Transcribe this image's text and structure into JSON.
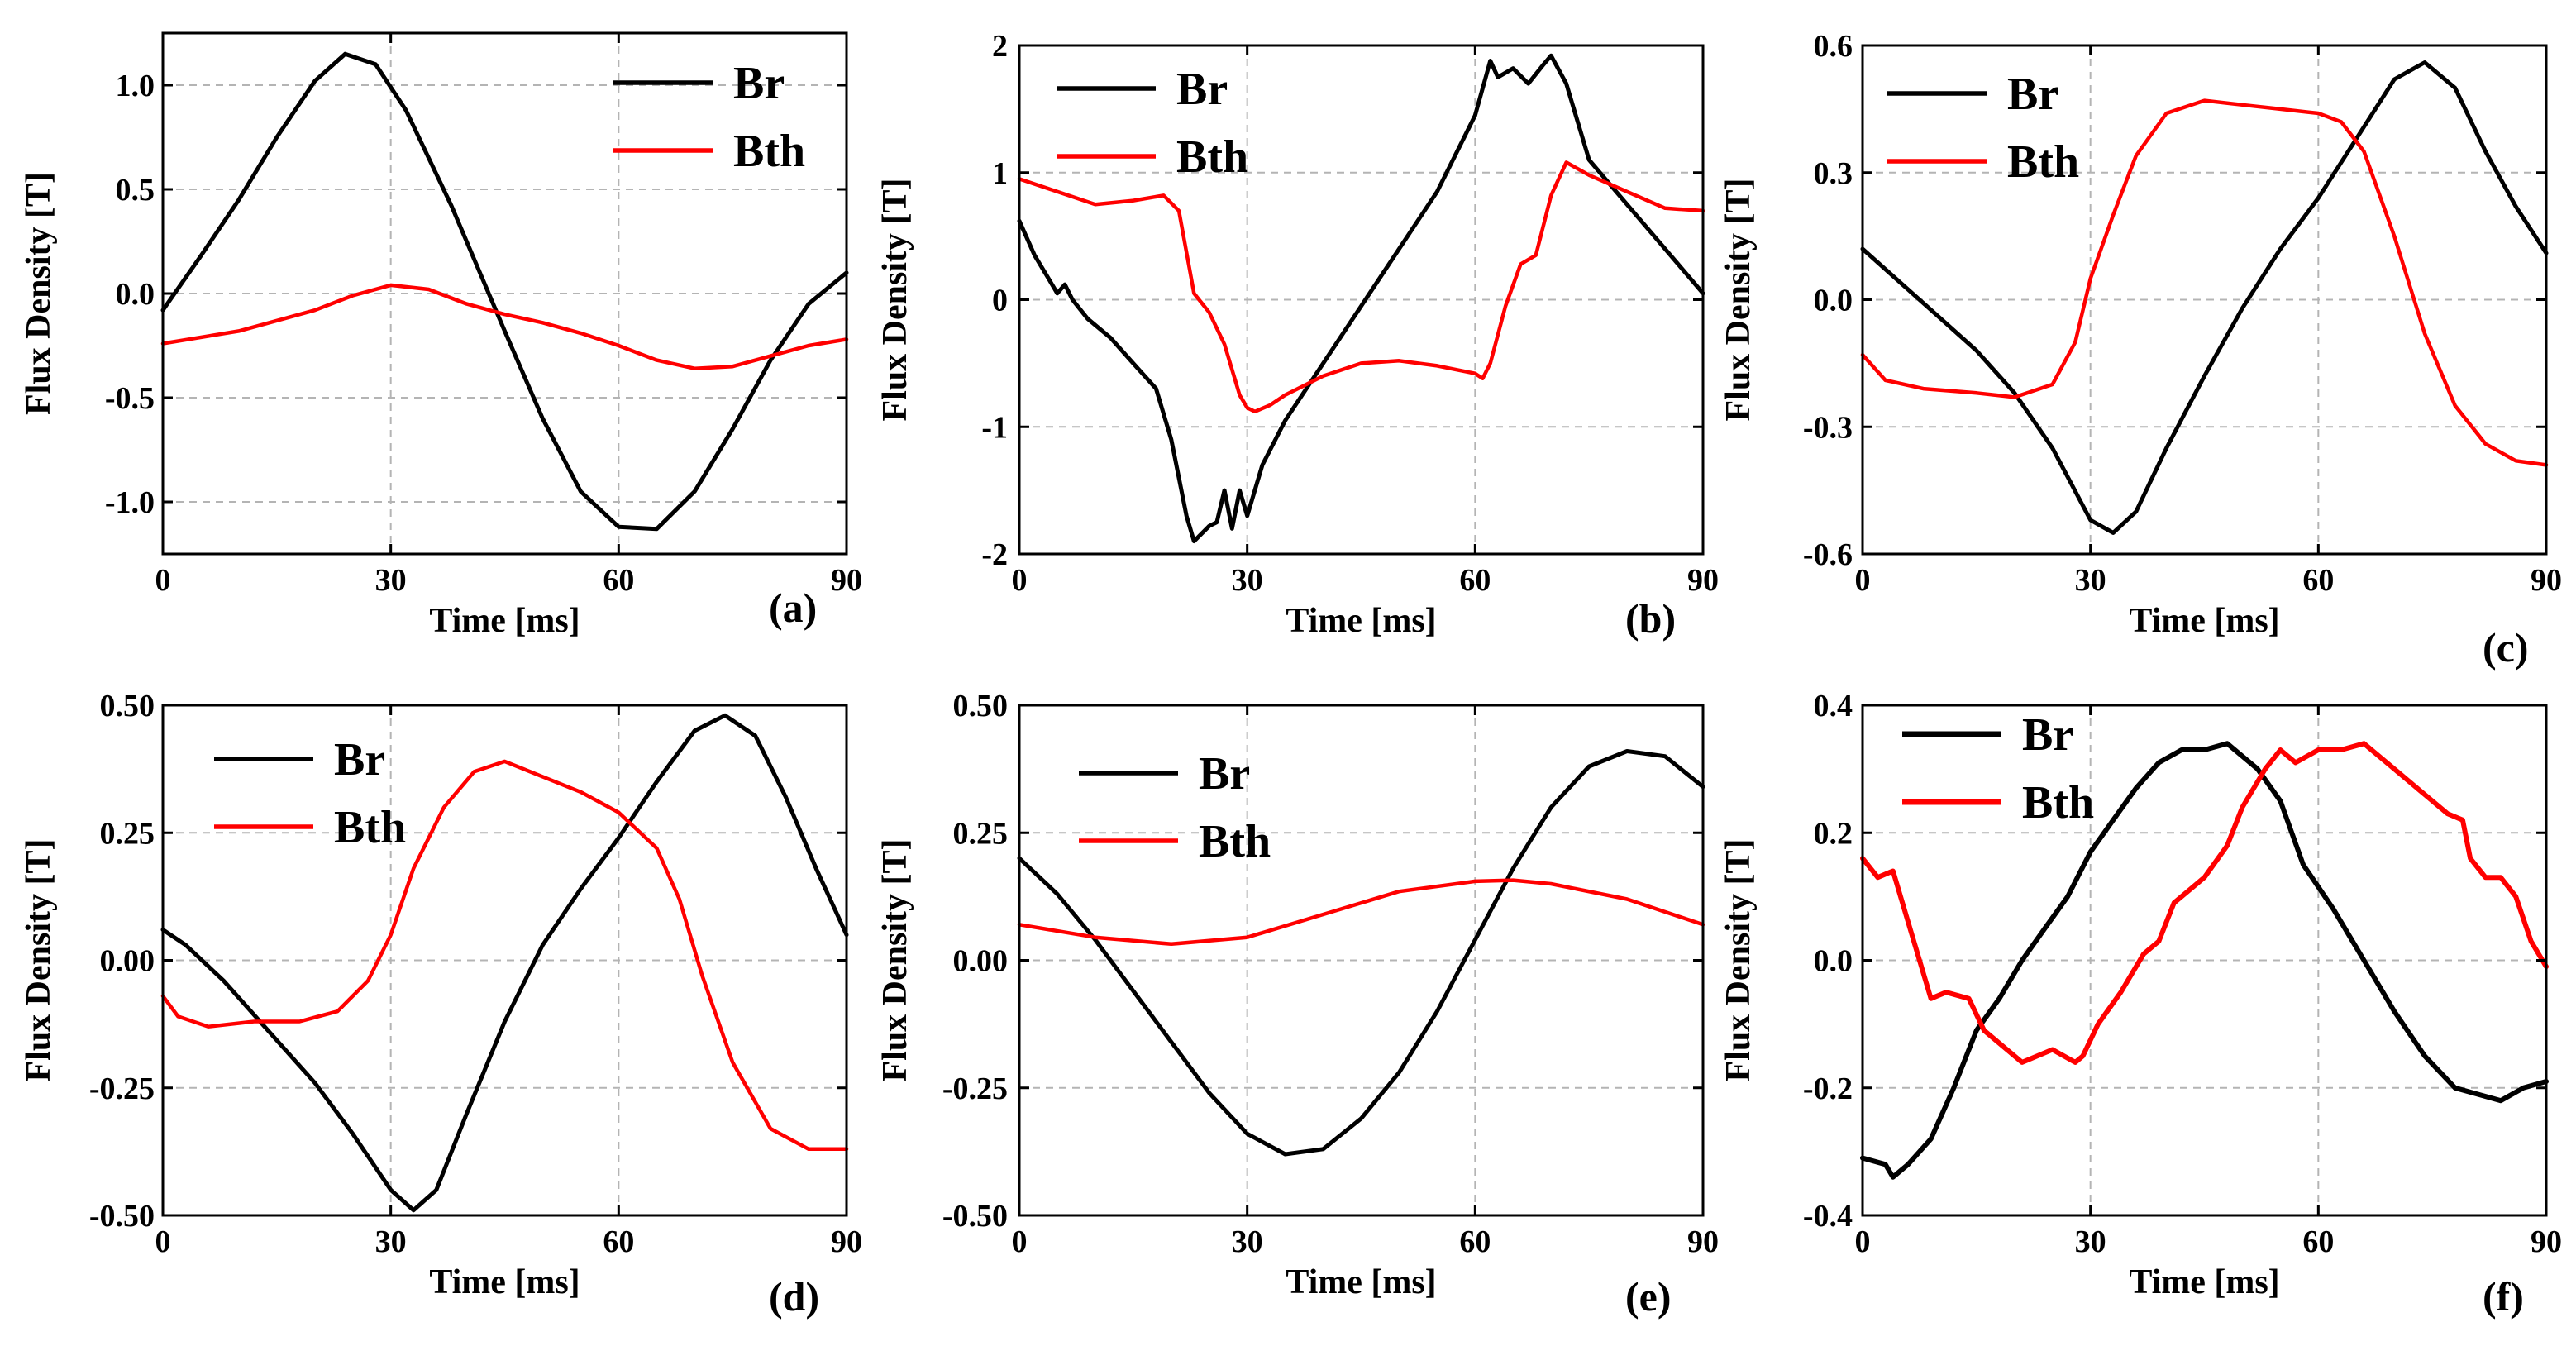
{
  "chart_data": [
    {
      "type": "line",
      "panel_label": "(a)",
      "xlabel": "Time [ms]",
      "ylabel": "Flux Density [T]",
      "xlim": [
        0,
        90
      ],
      "ylim": [
        -1.25,
        1.25
      ],
      "xticks": [
        0,
        30,
        60,
        90
      ],
      "xtick_labels": [
        "0",
        "30",
        "60",
        "90"
      ],
      "yticks": [
        -1.0,
        -0.5,
        0.0,
        0.5,
        1.0
      ],
      "ytick_labels": [
        "-1.0",
        "-0.5",
        "0.0",
        "0.5",
        "1.0"
      ],
      "grid": true,
      "legend": "top-right",
      "series": [
        {
          "name": "Br",
          "color": "#000000",
          "x": [
            0,
            5,
            10,
            15,
            20,
            24,
            28,
            32,
            38,
            45,
            50,
            55,
            60,
            65,
            70,
            75,
            80,
            85,
            90
          ],
          "y": [
            -0.08,
            0.18,
            0.45,
            0.75,
            1.02,
            1.15,
            1.1,
            0.88,
            0.42,
            -0.18,
            -0.6,
            -0.95,
            -1.12,
            -1.13,
            -0.95,
            -0.65,
            -0.32,
            -0.05,
            0.1
          ]
        },
        {
          "name": "Bth",
          "color": "#ff0000",
          "x": [
            0,
            10,
            20,
            25,
            30,
            35,
            40,
            45,
            50,
            55,
            60,
            65,
            70,
            75,
            80,
            85,
            90
          ],
          "y": [
            -0.24,
            -0.18,
            -0.08,
            -0.01,
            0.04,
            0.02,
            -0.05,
            -0.1,
            -0.14,
            -0.19,
            -0.25,
            -0.32,
            -0.36,
            -0.35,
            -0.3,
            -0.25,
            -0.22
          ]
        }
      ]
    },
    {
      "type": "line",
      "panel_label": "(b)",
      "xlabel": "Time [ms]",
      "ylabel": "Flux Density [T]",
      "xlim": [
        0,
        90
      ],
      "ylim": [
        -2,
        2
      ],
      "xticks": [
        0,
        30,
        60,
        90
      ],
      "xtick_labels": [
        "0",
        "30",
        "60",
        "90"
      ],
      "yticks": [
        -2,
        -1,
        0,
        1,
        2
      ],
      "ytick_labels": [
        "-2",
        "-1",
        "0",
        "1",
        "2"
      ],
      "grid": true,
      "legend": "top-left",
      "series": [
        {
          "name": "Br",
          "color": "#000000",
          "x": [
            0,
            2,
            4,
            5,
            6,
            7,
            9,
            12,
            15,
            18,
            20,
            22,
            23,
            25,
            26,
            27,
            28,
            29,
            30,
            32,
            35,
            40,
            45,
            50,
            55,
            60,
            62,
            63,
            65,
            67,
            69,
            70,
            72,
            75,
            80,
            85,
            90
          ],
          "y": [
            0.62,
            0.35,
            0.15,
            0.05,
            0.12,
            0.0,
            -0.15,
            -0.3,
            -0.5,
            -0.7,
            -1.1,
            -1.7,
            -1.9,
            -1.78,
            -1.75,
            -1.5,
            -1.8,
            -1.5,
            -1.7,
            -1.3,
            -0.95,
            -0.5,
            -0.05,
            0.4,
            0.85,
            1.45,
            1.88,
            1.75,
            1.82,
            1.7,
            1.85,
            1.92,
            1.7,
            1.1,
            0.75,
            0.4,
            0.05
          ]
        },
        {
          "name": "Bth",
          "color": "#ff0000",
          "x": [
            0,
            5,
            10,
            15,
            19,
            21,
            23,
            25,
            27,
            29,
            30,
            31,
            33,
            35,
            40,
            45,
            50,
            55,
            60,
            61,
            62,
            64,
            66,
            68,
            70,
            72,
            75,
            80,
            85,
            90
          ],
          "y": [
            0.95,
            0.85,
            0.75,
            0.78,
            0.82,
            0.7,
            0.05,
            -0.1,
            -0.35,
            -0.75,
            -0.85,
            -0.88,
            -0.83,
            -0.75,
            -0.6,
            -0.5,
            -0.48,
            -0.52,
            -0.58,
            -0.62,
            -0.5,
            -0.05,
            0.28,
            0.35,
            0.82,
            1.08,
            0.98,
            0.85,
            0.72,
            0.7
          ]
        }
      ]
    },
    {
      "type": "line",
      "panel_label": "(c)",
      "xlabel": "Time [ms]",
      "ylabel": "Flux Density [T]",
      "xlim": [
        0,
        90
      ],
      "ylim": [
        -0.6,
        0.6
      ],
      "xticks": [
        0,
        30,
        60,
        90
      ],
      "xtick_labels": [
        "0",
        "30",
        "60",
        "90"
      ],
      "yticks": [
        -0.6,
        -0.3,
        0.0,
        0.3,
        0.6
      ],
      "ytick_labels": [
        "-0.6",
        "-0.3",
        "0.0",
        "0.3",
        "0.6"
      ],
      "grid": true,
      "legend": "top-left",
      "series": [
        {
          "name": "Br",
          "color": "#000000",
          "x": [
            0,
            5,
            10,
            15,
            20,
            25,
            30,
            33,
            36,
            40,
            45,
            50,
            55,
            60,
            65,
            70,
            74,
            78,
            82,
            86,
            90
          ],
          "y": [
            0.12,
            0.04,
            -0.04,
            -0.12,
            -0.22,
            -0.35,
            -0.52,
            -0.55,
            -0.5,
            -0.35,
            -0.18,
            -0.02,
            0.12,
            0.24,
            0.38,
            0.52,
            0.56,
            0.5,
            0.35,
            0.22,
            0.11
          ]
        },
        {
          "name": "Bth",
          "color": "#ff0000",
          "x": [
            0,
            3,
            8,
            15,
            20,
            25,
            28,
            30,
            33,
            36,
            40,
            45,
            50,
            55,
            60,
            63,
            66,
            70,
            74,
            78,
            82,
            86,
            90
          ],
          "y": [
            -0.13,
            -0.19,
            -0.21,
            -0.22,
            -0.23,
            -0.2,
            -0.1,
            0.05,
            0.2,
            0.34,
            0.44,
            0.47,
            0.46,
            0.45,
            0.44,
            0.42,
            0.35,
            0.15,
            -0.08,
            -0.25,
            -0.34,
            -0.38,
            -0.39
          ]
        }
      ]
    },
    {
      "type": "line",
      "panel_label": "(d)",
      "xlabel": "Time [ms]",
      "ylabel": "Flux Density [T]",
      "xlim": [
        0,
        90
      ],
      "ylim": [
        -0.5,
        0.5
      ],
      "xticks": [
        0,
        30,
        60,
        90
      ],
      "xtick_labels": [
        "0",
        "30",
        "60",
        "90"
      ],
      "yticks": [
        -0.5,
        -0.25,
        0.0,
        0.25,
        0.5
      ],
      "ytick_labels": [
        "-0.50",
        "-0.25",
        "0.00",
        "0.25",
        "0.50"
      ],
      "grid": true,
      "legend": "top-left",
      "series": [
        {
          "name": "Br",
          "color": "#000000",
          "x": [
            0,
            3,
            8,
            14,
            20,
            25,
            30,
            33,
            36,
            40,
            45,
            50,
            55,
            60,
            65,
            70,
            74,
            78,
            82,
            86,
            90
          ],
          "y": [
            0.06,
            0.03,
            -0.04,
            -0.14,
            -0.24,
            -0.34,
            -0.45,
            -0.49,
            -0.45,
            -0.3,
            -0.12,
            0.03,
            0.14,
            0.24,
            0.35,
            0.45,
            0.48,
            0.44,
            0.32,
            0.18,
            0.05
          ]
        },
        {
          "name": "Bth",
          "color": "#ff0000",
          "x": [
            0,
            2,
            6,
            12,
            18,
            23,
            27,
            30,
            33,
            37,
            41,
            45,
            50,
            55,
            60,
            65,
            68,
            71,
            75,
            80,
            85,
            90
          ],
          "y": [
            -0.07,
            -0.11,
            -0.13,
            -0.12,
            -0.12,
            -0.1,
            -0.04,
            0.05,
            0.18,
            0.3,
            0.37,
            0.39,
            0.36,
            0.33,
            0.29,
            0.22,
            0.12,
            -0.03,
            -0.2,
            -0.33,
            -0.37,
            -0.37
          ]
        }
      ]
    },
    {
      "type": "line",
      "panel_label": "(e)",
      "xlabel": "Time [ms]",
      "ylabel": "Flux Density [T]",
      "xlim": [
        0,
        90
      ],
      "ylim": [
        -0.5,
        0.5
      ],
      "xticks": [
        0,
        30,
        60,
        90
      ],
      "xtick_labels": [
        "0",
        "30",
        "60",
        "90"
      ],
      "yticks": [
        -0.5,
        -0.25,
        0.0,
        0.25,
        0.5
      ],
      "ytick_labels": [
        "-0.50",
        "-0.25",
        "0.00",
        "0.25",
        "0.50"
      ],
      "grid": true,
      "legend": "top-left",
      "series": [
        {
          "name": "Br",
          "color": "#000000",
          "x": [
            0,
            5,
            10,
            15,
            20,
            25,
            30,
            35,
            40,
            45,
            50,
            55,
            60,
            65,
            70,
            75,
            80,
            85,
            90
          ],
          "y": [
            0.2,
            0.13,
            0.04,
            -0.06,
            -0.16,
            -0.26,
            -0.34,
            -0.38,
            -0.37,
            -0.31,
            -0.22,
            -0.1,
            0.04,
            0.18,
            0.3,
            0.38,
            0.41,
            0.4,
            0.34
          ]
        },
        {
          "name": "Bth",
          "color": "#ff0000",
          "x": [
            0,
            10,
            20,
            30,
            40,
            50,
            60,
            65,
            70,
            80,
            90
          ],
          "y": [
            0.07,
            0.045,
            0.032,
            0.045,
            0.09,
            0.135,
            0.155,
            0.157,
            0.15,
            0.12,
            0.07
          ]
        }
      ]
    },
    {
      "type": "line",
      "panel_label": "(f)",
      "xlabel": "Time [ms]",
      "ylabel": "Flux Density [T]",
      "xlim": [
        0,
        90
      ],
      "ylim": [
        -0.4,
        0.4
      ],
      "xticks": [
        0,
        30,
        60,
        90
      ],
      "xtick_labels": [
        "0",
        "30",
        "60",
        "90"
      ],
      "yticks": [
        -0.4,
        -0.2,
        0.0,
        0.2,
        0.4
      ],
      "ytick_labels": [
        "-0.4",
        "-0.2",
        "0.0",
        "0.2",
        "0.4"
      ],
      "grid": true,
      "legend": "top-left",
      "series": [
        {
          "name": "Br",
          "color": "#000000",
          "x": [
            0,
            3,
            4,
            6,
            9,
            12,
            15,
            18,
            21,
            24,
            27,
            30,
            33,
            36,
            39,
            42,
            45,
            48,
            52,
            55,
            58,
            62,
            66,
            70,
            74,
            78,
            81,
            84,
            87,
            90
          ],
          "y": [
            -0.31,
            -0.32,
            -0.34,
            -0.32,
            -0.28,
            -0.2,
            -0.11,
            -0.06,
            0.0,
            0.05,
            0.1,
            0.17,
            0.22,
            0.27,
            0.31,
            0.33,
            0.33,
            0.34,
            0.3,
            0.25,
            0.15,
            0.08,
            0.0,
            -0.08,
            -0.15,
            -0.2,
            -0.21,
            -0.22,
            -0.2,
            -0.19
          ]
        },
        {
          "name": "Bth",
          "color": "#ff0000",
          "x": [
            0,
            2,
            4,
            6,
            9,
            11,
            14,
            16,
            19,
            21,
            25,
            28,
            29,
            31,
            34,
            37,
            39,
            41,
            43,
            45,
            48,
            50,
            53,
            55,
            57,
            60,
            63,
            66,
            70,
            74,
            77,
            79,
            80,
            82,
            84,
            86,
            88,
            90
          ],
          "y": [
            0.16,
            0.13,
            0.14,
            0.06,
            -0.06,
            -0.05,
            -0.06,
            -0.11,
            -0.14,
            -0.16,
            -0.14,
            -0.16,
            -0.15,
            -0.1,
            -0.05,
            0.01,
            0.03,
            0.09,
            0.11,
            0.13,
            0.18,
            0.24,
            0.3,
            0.33,
            0.31,
            0.33,
            0.33,
            0.34,
            0.3,
            0.26,
            0.23,
            0.22,
            0.16,
            0.13,
            0.13,
            0.1,
            0.03,
            -0.01
          ]
        }
      ]
    }
  ]
}
